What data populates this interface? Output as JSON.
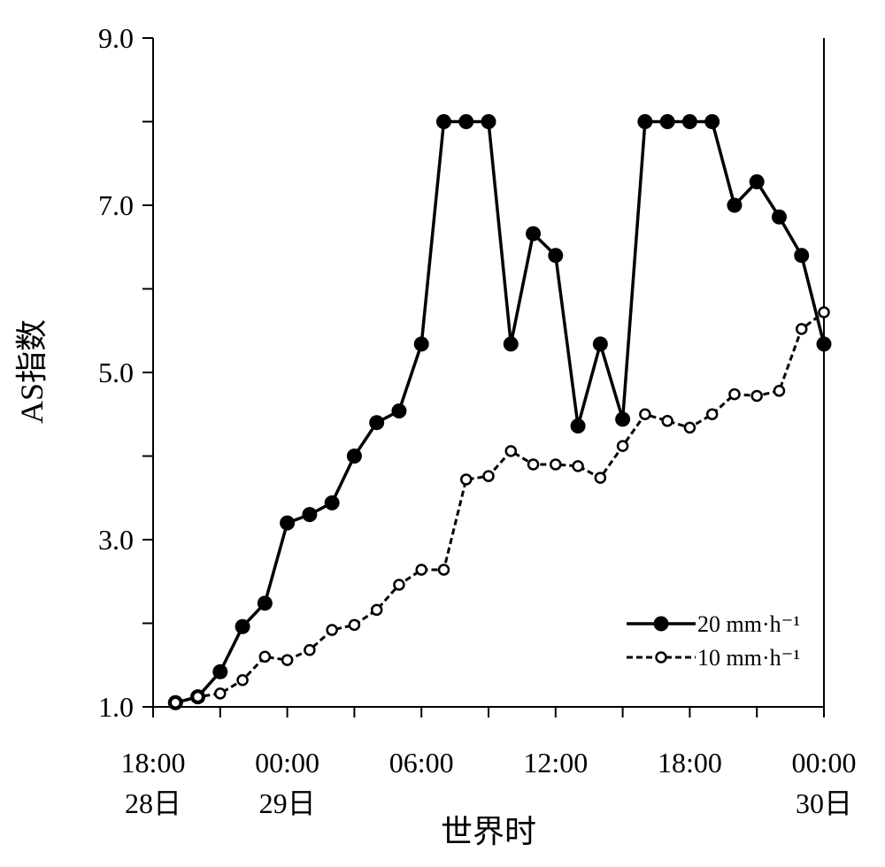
{
  "chart_data": {
    "type": "line",
    "ylabel": "AS指数",
    "xlabel": "世界时",
    "ylim": [
      1.0,
      9.0
    ],
    "yticks": [
      1,
      2,
      3,
      4,
      5,
      6,
      7,
      8,
      9
    ],
    "ytick_labels": [
      "1.0",
      "",
      "3.0",
      "",
      "5.0",
      "",
      "7.0",
      "",
      "9.0"
    ],
    "xlim_hours": [
      -6,
      24
    ],
    "xticks_hours": [
      -6,
      -3,
      0,
      3,
      6,
      9,
      12,
      15,
      18,
      21,
      24
    ],
    "xtick_labels": [
      {
        "time": "18:00",
        "date": "28日",
        "hour": -6
      },
      {
        "time": "00:00",
        "date": "29日",
        "hour": 0
      },
      {
        "time": "06:00",
        "date": "",
        "hour": 6
      },
      {
        "time": "12:00",
        "date": "",
        "hour": 12
      },
      {
        "time": "18:00",
        "date": "",
        "hour": 18
      },
      {
        "time": "00:00",
        "date": "30日",
        "hour": 24
      }
    ],
    "legend_position": "bottom-right",
    "series": [
      {
        "name": "20 mm·h⁻¹",
        "style": "solid",
        "marker": "filled-circle",
        "color": "#000000",
        "x": [
          -5,
          -4,
          -3,
          -2,
          -1,
          0,
          1,
          2,
          3,
          4,
          5,
          6,
          7,
          8,
          9,
          10,
          11,
          12,
          13,
          14,
          15,
          16,
          17,
          18,
          19,
          20,
          21,
          22,
          23,
          24
        ],
        "y": [
          1.05,
          1.12,
          1.42,
          1.96,
          2.24,
          3.2,
          3.3,
          3.44,
          4.0,
          4.4,
          4.54,
          5.34,
          8.0,
          8.0,
          8.0,
          5.34,
          6.66,
          6.4,
          4.36,
          5.34,
          4.44,
          8.0,
          8.0,
          8.0,
          8.0,
          7.0,
          7.28,
          6.86,
          6.4,
          5.34
        ]
      },
      {
        "name": "10 mm·h⁻¹",
        "style": "dashed",
        "marker": "open-circle",
        "color": "#000000",
        "x": [
          -5,
          -4,
          -3,
          -2,
          -1,
          0,
          1,
          2,
          3,
          4,
          5,
          6,
          7,
          8,
          9,
          10,
          11,
          12,
          13,
          14,
          15,
          16,
          17,
          18,
          19,
          20,
          21,
          22,
          23,
          24
        ],
        "y": [
          1.05,
          1.12,
          1.16,
          1.32,
          1.6,
          1.56,
          1.68,
          1.92,
          1.98,
          2.16,
          2.46,
          2.64,
          2.64,
          3.72,
          3.76,
          4.06,
          3.9,
          3.9,
          3.88,
          3.74,
          4.12,
          4.5,
          4.42,
          4.34,
          4.5,
          4.74,
          4.72,
          4.78,
          5.52,
          5.72
        ]
      }
    ]
  }
}
